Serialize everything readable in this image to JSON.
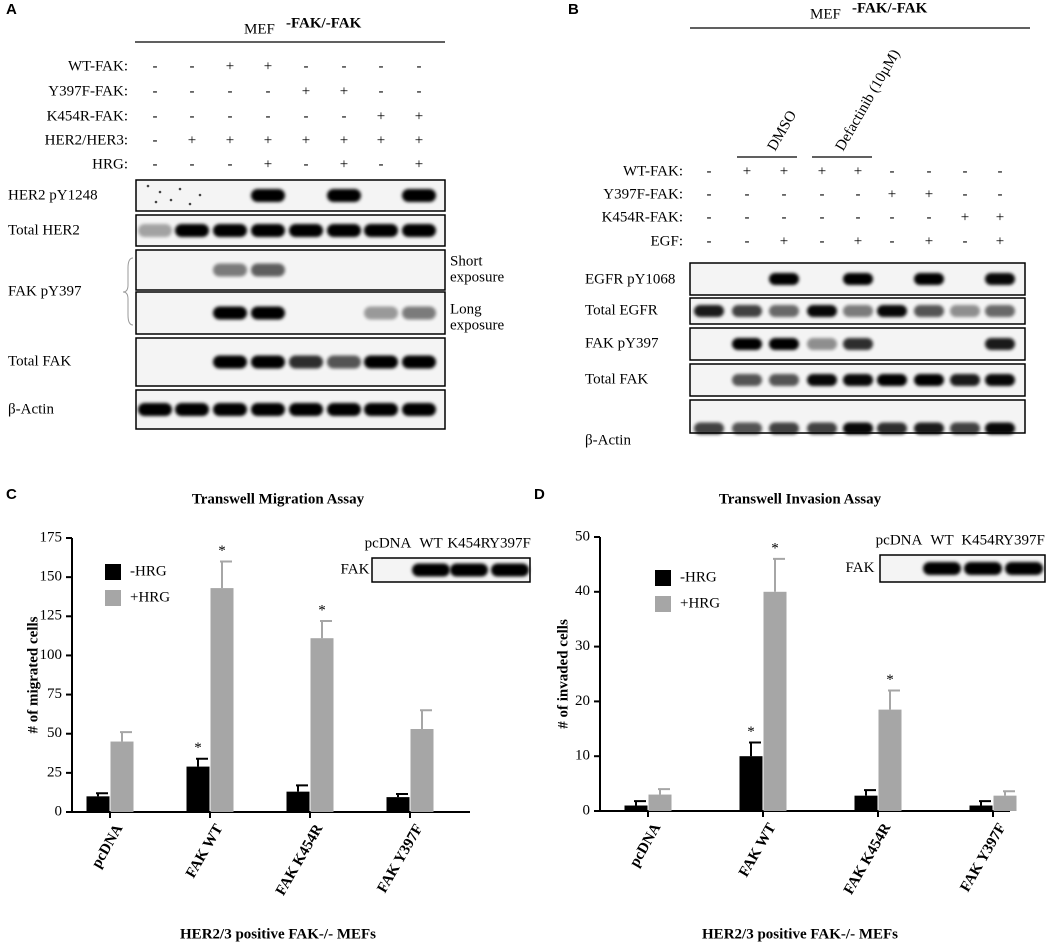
{
  "panel_a": {
    "letter": "A",
    "header": "MEF",
    "header_sup": "-FAK/-FAK",
    "treatments": [
      {
        "label": "WT-FAK:",
        "signs": [
          "-",
          "-",
          "+",
          "+",
          "-",
          "-",
          "-",
          "-"
        ]
      },
      {
        "label": "Y397F-FAK:",
        "signs": [
          "-",
          "-",
          "-",
          "-",
          "+",
          "+",
          "-",
          "-"
        ]
      },
      {
        "label": "K454R-FAK:",
        "signs": [
          "-",
          "-",
          "-",
          "-",
          "-",
          "-",
          "+",
          "+"
        ]
      },
      {
        "label": "HER2/HER3:",
        "signs": [
          "-",
          "+",
          "+",
          "+",
          "+",
          "+",
          "+",
          "+"
        ]
      },
      {
        "label": "HRG:",
        "signs": [
          "-",
          "-",
          "-",
          "+",
          "-",
          "+",
          "-",
          "+"
        ]
      }
    ],
    "blots": [
      {
        "label": "HER2 pY1248"
      },
      {
        "label": "Total HER2"
      },
      {
        "label": "FAK pY397",
        "notes": [
          [
            "Short",
            "exposure"
          ],
          [
            "Long",
            "exposure"
          ]
        ]
      },
      {
        "label": "Total FAK"
      },
      {
        "label": "β-Actin"
      }
    ]
  },
  "panel_b": {
    "letter": "B",
    "header": "MEF",
    "header_sup": "-FAK/-FAK",
    "groups": [
      "DMSO",
      "Defactinib (10µM)"
    ],
    "treatments": [
      {
        "label": "WT-FAK:",
        "signs": [
          "-",
          "+",
          "+",
          "+",
          "+",
          "-",
          "-",
          "-",
          "-"
        ]
      },
      {
        "label": "Y397F-FAK:",
        "signs": [
          "-",
          "-",
          "-",
          "-",
          "-",
          "+",
          "+",
          "-",
          "-"
        ]
      },
      {
        "label": "K454R-FAK:",
        "signs": [
          "-",
          "-",
          "-",
          "-",
          "-",
          "-",
          "-",
          "+",
          "+"
        ]
      },
      {
        "label": "EGF:",
        "signs": [
          "-",
          "-",
          "+",
          "-",
          "+",
          "-",
          "+",
          "-",
          "+"
        ]
      }
    ],
    "blots": [
      {
        "label": "EGFR pY1068"
      },
      {
        "label": "Total EGFR"
      },
      {
        "label": "FAK pY397"
      },
      {
        "label": "Total FAK"
      },
      {
        "label": "β-Actin"
      }
    ]
  },
  "chart_data": [
    {
      "type": "bar",
      "letter": "C",
      "title": "Transwell Migration Assay",
      "y_label": "# of migrated cells",
      "x_label": "HER2/3 positive FAK-/- MEFs",
      "categories": [
        "pcDNA",
        "FAK WT",
        "FAK K454R",
        "FAK Y397F"
      ],
      "series": [
        {
          "name": "-HRG",
          "color": "#000000",
          "values": [
            10,
            29,
            13,
            9.5
          ],
          "errors": [
            2,
            5,
            4,
            2
          ],
          "significance": [
            null,
            "*",
            null,
            null
          ]
        },
        {
          "name": "+HRG",
          "color": "#a6a6a6",
          "values": [
            45,
            143,
            111,
            53
          ],
          "errors": [
            6,
            17,
            11,
            12
          ],
          "significance": [
            null,
            "*",
            "*",
            null
          ]
        }
      ],
      "ylim": [
        0,
        175
      ],
      "yticks": [
        0,
        25,
        50,
        75,
        100,
        125,
        150,
        175
      ],
      "inset": {
        "lanes": [
          "pcDNA",
          "WT",
          "K454R",
          "Y397F"
        ],
        "label": "FAK"
      }
    },
    {
      "type": "bar",
      "letter": "D",
      "title": "Transwell Invasion Assay",
      "y_label": "# of invaded cells",
      "x_label": "HER2/3 positive FAK-/- MEFs",
      "categories": [
        "pcDNA",
        "FAK WT",
        "FAK K454R",
        "FAK Y397F"
      ],
      "series": [
        {
          "name": "-HRG",
          "color": "#000000",
          "values": [
            1,
            10,
            2.8,
            1
          ],
          "errors": [
            0.8,
            2.5,
            1,
            0.8
          ],
          "significance": [
            null,
            "*",
            null,
            null
          ]
        },
        {
          "name": "+HRG",
          "color": "#a6a6a6",
          "values": [
            3,
            40,
            18.5,
            2.8
          ],
          "errors": [
            1,
            6,
            3.5,
            0.8
          ],
          "significance": [
            null,
            "*",
            "*",
            null
          ]
        }
      ],
      "ylim": [
        0,
        50
      ],
      "yticks": [
        0,
        10,
        20,
        30,
        40,
        50
      ],
      "inset": {
        "lanes": [
          "pcDNA",
          "WT",
          "K454R",
          "Y397F"
        ],
        "label": "FAK"
      }
    }
  ]
}
